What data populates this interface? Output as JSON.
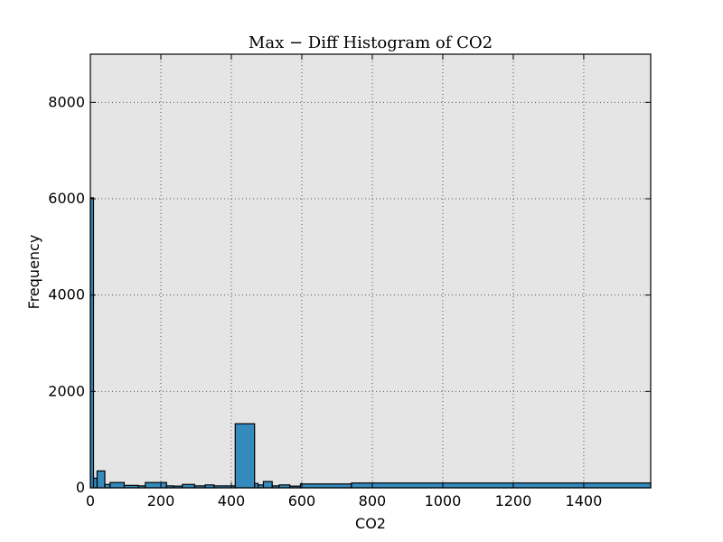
{
  "chart_data": {
    "type": "bar",
    "title": "Max − Diff Histogram of CO2",
    "xlabel": "CO2",
    "ylabel": "Frequency",
    "xlim": [
      0,
      1590
    ],
    "ylim": [
      0,
      9000
    ],
    "xticks": [
      0,
      200,
      400,
      600,
      800,
      1000,
      1200,
      1400
    ],
    "yticks": [
      0,
      2000,
      4000,
      6000,
      8000
    ],
    "grid": true,
    "legend": "none",
    "colors": {
      "bar": "#348abd",
      "plot_background": "#e5e5e5",
      "edge": "#000000"
    },
    "bins": [
      {
        "x0": 0,
        "x1": 9,
        "y": 6020
      },
      {
        "x0": 9,
        "x1": 19,
        "y": 200
      },
      {
        "x0": 19,
        "x1": 41,
        "y": 350
      },
      {
        "x0": 41,
        "x1": 56,
        "y": 70
      },
      {
        "x0": 56,
        "x1": 96,
        "y": 110
      },
      {
        "x0": 96,
        "x1": 136,
        "y": 50
      },
      {
        "x0": 136,
        "x1": 156,
        "y": 40
      },
      {
        "x0": 156,
        "x1": 216,
        "y": 110
      },
      {
        "x0": 216,
        "x1": 236,
        "y": 40
      },
      {
        "x0": 236,
        "x1": 261,
        "y": 35
      },
      {
        "x0": 261,
        "x1": 296,
        "y": 70
      },
      {
        "x0": 296,
        "x1": 326,
        "y": 40
      },
      {
        "x0": 326,
        "x1": 351,
        "y": 60
      },
      {
        "x0": 351,
        "x1": 411,
        "y": 40
      },
      {
        "x0": 411,
        "x1": 466,
        "y": 1330
      },
      {
        "x0": 466,
        "x1": 476,
        "y": 90
      },
      {
        "x0": 476,
        "x1": 491,
        "y": 60
      },
      {
        "x0": 491,
        "x1": 516,
        "y": 130
      },
      {
        "x0": 516,
        "x1": 536,
        "y": 40
      },
      {
        "x0": 536,
        "x1": 566,
        "y": 60
      },
      {
        "x0": 566,
        "x1": 596,
        "y": 35
      },
      {
        "x0": 596,
        "x1": 741,
        "y": 80
      },
      {
        "x0": 741,
        "x1": 1590,
        "y": 100
      }
    ]
  }
}
